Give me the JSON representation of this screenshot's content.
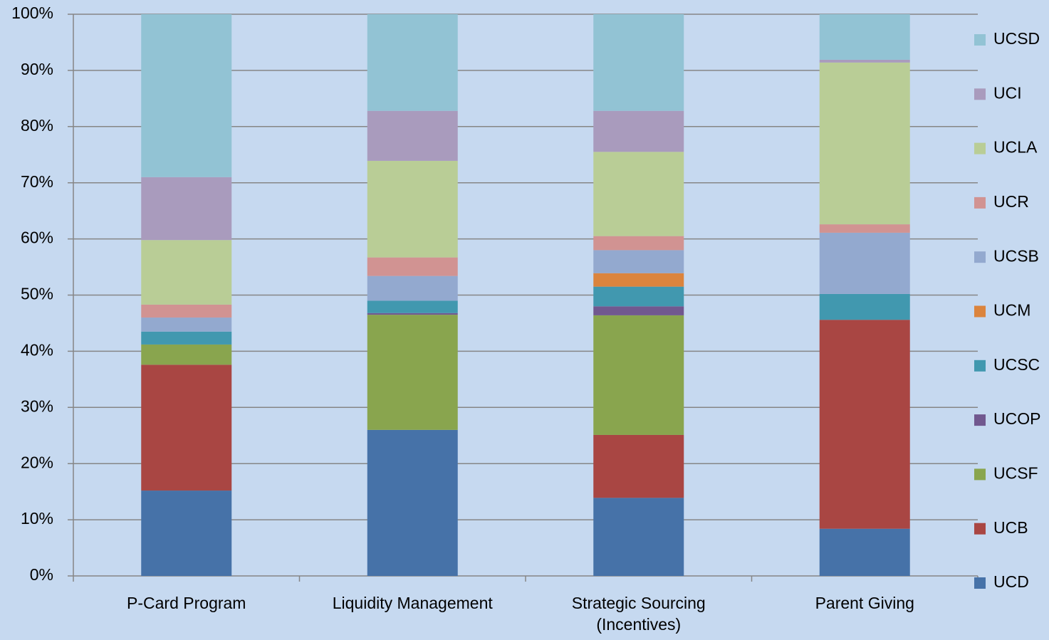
{
  "chart_data": {
    "type": "stacked_bar",
    "categories": [
      "P-Card Program",
      "Liquidity Management",
      "Strategic Sourcing (Incentives)",
      "Parent Giving"
    ],
    "series": [
      {
        "name": "UCD",
        "color": "#4672a8",
        "values": [
          15.2,
          26.0,
          13.9,
          8.4
        ]
      },
      {
        "name": "UCB",
        "color": "#a94643",
        "values": [
          22.4,
          0,
          11.2,
          37.2
        ]
      },
      {
        "name": "UCSF",
        "color": "#89a54e",
        "values": [
          3.6,
          20.5,
          21.3,
          0
        ]
      },
      {
        "name": "UCOP",
        "color": "#71588f",
        "values": [
          0,
          0.3,
          1.6,
          0
        ]
      },
      {
        "name": "UCSC",
        "color": "#4198af",
        "values": [
          2.3,
          2.2,
          3.5,
          4.6
        ]
      },
      {
        "name": "UCM",
        "color": "#db843d",
        "values": [
          0,
          0,
          2.4,
          0
        ]
      },
      {
        "name": "UCSB",
        "color": "#93a9cf",
        "values": [
          2.5,
          4.4,
          4.1,
          10.9
        ]
      },
      {
        "name": "UCR",
        "color": "#d19392",
        "values": [
          2.3,
          3.3,
          2.5,
          1.5
        ]
      },
      {
        "name": "UCLA",
        "color": "#b9cd96",
        "values": [
          11.5,
          17.2,
          15.0,
          28.8
        ]
      },
      {
        "name": "UCI",
        "color": "#a99bbd",
        "values": [
          11.2,
          8.9,
          7.3,
          0.5
        ]
      },
      {
        "name": "UCSD",
        "color": "#92c3d4",
        "values": [
          29.0,
          17.2,
          17.2,
          8.1
        ]
      }
    ],
    "ylim": [
      0,
      100
    ],
    "yticks": [
      {
        "value": 0,
        "label": "0%"
      },
      {
        "value": 10,
        "label": "10%"
      },
      {
        "value": 20,
        "label": "20%"
      },
      {
        "value": 30,
        "label": "30%"
      },
      {
        "value": 40,
        "label": "40%"
      },
      {
        "value": 50,
        "label": "50%"
      },
      {
        "value": 60,
        "label": "60%"
      },
      {
        "value": 70,
        "label": "70%"
      },
      {
        "value": 80,
        "label": "80%"
      },
      {
        "value": 90,
        "label": "90%"
      },
      {
        "value": 100,
        "label": "100%"
      }
    ],
    "grid": true,
    "legend": "right"
  }
}
